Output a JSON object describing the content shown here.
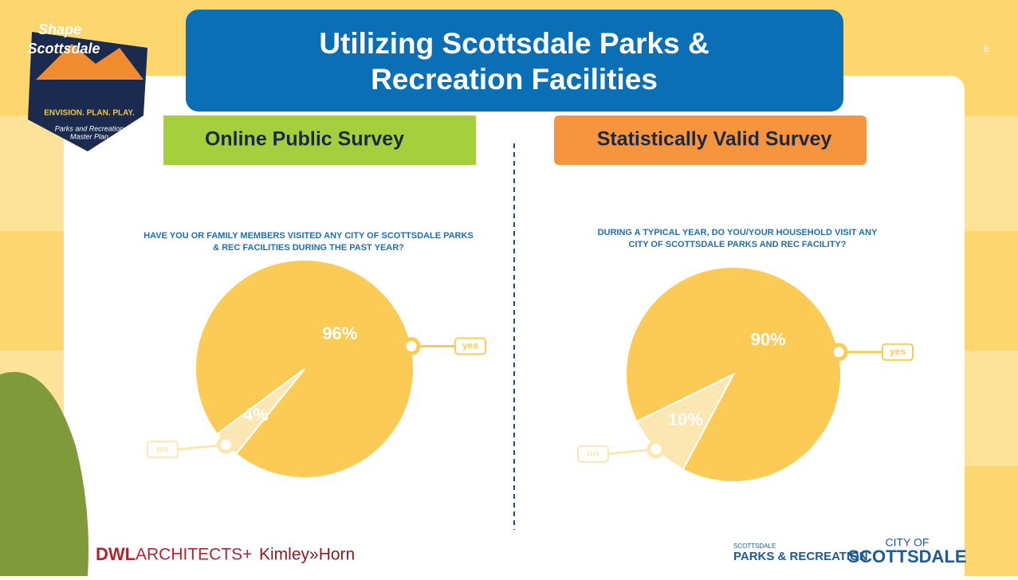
{
  "slide": {
    "title_line1": "Utilizing Scottsdale Parks &",
    "title_line2": "Recreation Facilities",
    "page_number": "8",
    "logo_line1": "Shape",
    "logo_line2": "Scottsdale",
    "logo_tagline": "ENVISION. PLAN. PLAY.",
    "logo_sub1": "Parks and Recreation",
    "logo_sub2": "Master Plan",
    "footer_dwl": "DWL",
    "footer_architects": "ARCHITECTS+",
    "footer_kimley": "Kimley»Horn",
    "footer_parks_small": "SCOTTSDALE",
    "footer_parks": "PARKS & RECREATION",
    "footer_city_small": "CITY OF",
    "footer_city": "SCOTTSDALE"
  },
  "chart_data": [
    {
      "type": "pie",
      "header": "Online Public Survey",
      "title": [
        "HAVE YOU OR FAMILY MEMBERS VISITED ANY CITY OF SCOTTSDALE PARKS",
        "& REC FACILITIES DURING THE PAST YEAR?"
      ],
      "categories": [
        "yes",
        "no"
      ],
      "values": [
        96,
        4
      ],
      "value_labels": [
        "96%",
        "4%"
      ],
      "colors": [
        "#fccb55",
        "#fce7b2"
      ]
    },
    {
      "type": "pie",
      "header": "Statistically Valid Survey",
      "title": [
        "DURING A TYPICAL YEAR, DO YOU/YOUR HOUSEHOLD VISIT ANY",
        "CITY OF SCOTTSDALE PARKS AND REC FACILITY?"
      ],
      "categories": [
        "yes",
        "no"
      ],
      "values": [
        90,
        10
      ],
      "value_labels": [
        "90%",
        "10%"
      ],
      "colors": [
        "#fccb55",
        "#fce7b2"
      ]
    }
  ]
}
